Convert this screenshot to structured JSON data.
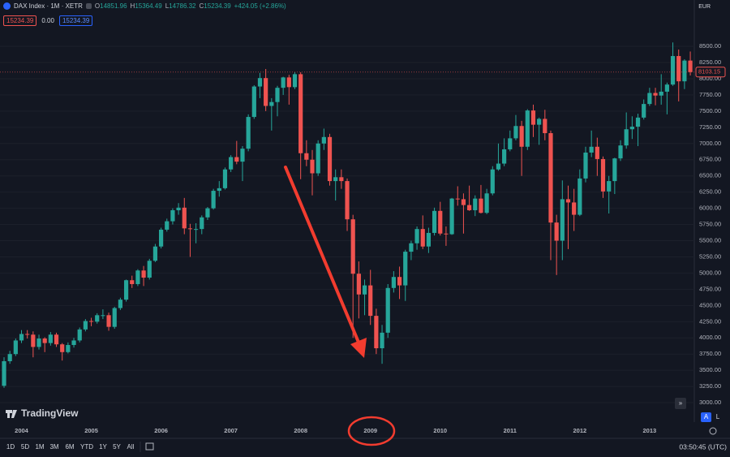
{
  "header": {
    "symbol": "DAX Index · 1M · XETR",
    "o_label": "O",
    "open": "14851.96",
    "h_label": "H",
    "high": "15364.49",
    "l_label": "L",
    "low": "14786.32",
    "c_label": "C",
    "close": "15234.39",
    "change": "+424.05 (+2.86%)",
    "sell": "15234.39",
    "spread": "0.00",
    "buy": "15234.39",
    "currency": "EUR"
  },
  "chart_data": {
    "type": "candlestick",
    "up_color": "#26a69a",
    "down_color": "#ef5350",
    "ylim": [
      2700,
      9215
    ],
    "yticks": [
      {
        "value": 3000,
        "label": "3000.00"
      },
      {
        "value": 3250,
        "label": "3250.00"
      },
      {
        "value": 3500,
        "label": "3500.00"
      },
      {
        "value": 3750,
        "label": "3750.00"
      },
      {
        "value": 4000,
        "label": "4000.00"
      },
      {
        "value": 4250,
        "label": "4250.00"
      },
      {
        "value": 4500,
        "label": "4500.00"
      },
      {
        "value": 4750,
        "label": "4750.00"
      },
      {
        "value": 5000,
        "label": "5000.00"
      },
      {
        "value": 5250,
        "label": "5250.00"
      },
      {
        "value": 5500,
        "label": "5500.00"
      },
      {
        "value": 5750,
        "label": "5750.00"
      },
      {
        "value": 6000,
        "label": "6000.00"
      },
      {
        "value": 6250,
        "label": "6250.00"
      },
      {
        "value": 6500,
        "label": "6500.00"
      },
      {
        "value": 6750,
        "label": "6750.00"
      },
      {
        "value": 7000,
        "label": "7000.00"
      },
      {
        "value": 7250,
        "label": "7250.00"
      },
      {
        "value": 7500,
        "label": "7500.00"
      },
      {
        "value": 7750,
        "label": "7750.00"
      },
      {
        "value": 8000,
        "label": "8000.00"
      },
      {
        "value": 8250,
        "label": "8250.00"
      },
      {
        "value": 8500,
        "label": "8500.00"
      }
    ],
    "xtick_labels": [
      "2004",
      "2005",
      "2006",
      "2007",
      "2008",
      "2009",
      "2010",
      "2011",
      "2012",
      "2013"
    ],
    "ohlc": [
      [
        3260,
        3700,
        3230,
        3640
      ],
      [
        3640,
        3800,
        3600,
        3750
      ],
      [
        3750,
        3990,
        3720,
        3960
      ],
      [
        3960,
        4120,
        3920,
        4060
      ],
      [
        4060,
        4120,
        3990,
        4050
      ],
      [
        4050,
        4100,
        3700,
        3860
      ],
      [
        3860,
        4050,
        3820,
        3990
      ],
      [
        3990,
        4010,
        3780,
        3920
      ],
      [
        3920,
        4090,
        3880,
        4050
      ],
      [
        4050,
        4080,
        3860,
        3900
      ],
      [
        3900,
        3920,
        3650,
        3780
      ],
      [
        3780,
        3930,
        3760,
        3890
      ],
      [
        3890,
        4000,
        3850,
        3960
      ],
      [
        3960,
        4160,
        3930,
        4130
      ],
      [
        4130,
        4290,
        4100,
        4260
      ],
      [
        4260,
        4310,
        4180,
        4250
      ],
      [
        4250,
        4380,
        4220,
        4350
      ],
      [
        4350,
        4440,
        4290,
        4350
      ],
      [
        4350,
        4390,
        4110,
        4170
      ],
      [
        4170,
        4480,
        4140,
        4460
      ],
      [
        4460,
        4620,
        4430,
        4590
      ],
      [
        4590,
        4900,
        4560,
        4890
      ],
      [
        4890,
        4960,
        4770,
        4830
      ],
      [
        4830,
        5060,
        4800,
        5040
      ],
      [
        5040,
        5110,
        4800,
        4930
      ],
      [
        4930,
        5220,
        4900,
        5190
      ],
      [
        5190,
        5450,
        5170,
        5410
      ],
      [
        5410,
        5700,
        5380,
        5670
      ],
      [
        5670,
        5840,
        5640,
        5800
      ],
      [
        5800,
        6000,
        5750,
        5970
      ],
      [
        5970,
        6080,
        5900,
        6010
      ],
      [
        6010,
        6160,
        5600,
        5690
      ],
      [
        5690,
        5760,
        5250,
        5680
      ],
      [
        5680,
        5770,
        5460,
        5680
      ],
      [
        5680,
        5890,
        5600,
        5860
      ],
      [
        5860,
        6020,
        5820,
        6000
      ],
      [
        6000,
        6300,
        5980,
        6270
      ],
      [
        6270,
        6420,
        6180,
        6310
      ],
      [
        6310,
        6630,
        6290,
        6600
      ],
      [
        6600,
        6820,
        6560,
        6790
      ],
      [
        6790,
        7040,
        6680,
        6720
      ],
      [
        6720,
        6960,
        6420,
        6920
      ],
      [
        6920,
        7450,
        6880,
        7410
      ],
      [
        7410,
        7900,
        7380,
        7880
      ],
      [
        7880,
        8090,
        7700,
        8010
      ],
      [
        8010,
        8150,
        7500,
        7580
      ],
      [
        7580,
        7700,
        7200,
        7640
      ],
      [
        7640,
        7890,
        7420,
        7860
      ],
      [
        7860,
        8030,
        7750,
        8020
      ],
      [
        8020,
        8060,
        7600,
        7870
      ],
      [
        7870,
        8100,
        7840,
        8070
      ],
      [
        8070,
        8100,
        6450,
        6850
      ],
      [
        6850,
        7050,
        6650,
        6750
      ],
      [
        6750,
        6900,
        6200,
        6540
      ],
      [
        6540,
        7050,
        6500,
        7000
      ],
      [
        7000,
        7230,
        6900,
        7100
      ],
      [
        7100,
        7150,
        6350,
        6420
      ],
      [
        6420,
        6600,
        6120,
        6480
      ],
      [
        6480,
        6600,
        6300,
        6420
      ],
      [
        6420,
        6460,
        5650,
        5830
      ],
      [
        5830,
        5900,
        4000,
        4990
      ],
      [
        4990,
        5180,
        4300,
        4670
      ],
      [
        4670,
        4900,
        4350,
        4810
      ],
      [
        4810,
        5050,
        4200,
        4340
      ],
      [
        4340,
        4450,
        3750,
        3840
      ],
      [
        3840,
        4200,
        3600,
        4080
      ],
      [
        4080,
        4830,
        4000,
        4770
      ],
      [
        4770,
        5030,
        4700,
        4940
      ],
      [
        4940,
        5100,
        4600,
        4810
      ],
      [
        4810,
        5360,
        4570,
        5330
      ],
      [
        5330,
        5500,
        5200,
        5460
      ],
      [
        5460,
        5720,
        5360,
        5680
      ],
      [
        5680,
        5890,
        5370,
        5410
      ],
      [
        5410,
        5700,
        5310,
        5620
      ],
      [
        5620,
        6010,
        5580,
        5960
      ],
      [
        5960,
        6100,
        5580,
        5610
      ],
      [
        5610,
        5720,
        5420,
        5600
      ],
      [
        5600,
        6160,
        5590,
        6150
      ],
      [
        6150,
        6340,
        6040,
        6140
      ],
      [
        6140,
        6230,
        5610,
        6050
      ],
      [
        6050,
        6350,
        5960,
        5970
      ],
      [
        5970,
        6200,
        5880,
        6150
      ],
      [
        6150,
        6360,
        5920,
        5930
      ],
      [
        5930,
        6300,
        5910,
        6230
      ],
      [
        6230,
        6650,
        6200,
        6600
      ],
      [
        6600,
        7000,
        6580,
        6690
      ],
      [
        6690,
        7080,
        6650,
        6910
      ],
      [
        6910,
        7200,
        6880,
        7080
      ],
      [
        7080,
        7440,
        7050,
        7270
      ],
      [
        7270,
        7350,
        6500,
        6950
      ],
      [
        6950,
        7530,
        6900,
        7510
      ],
      [
        7510,
        7600,
        7100,
        7290
      ],
      [
        7290,
        7400,
        6980,
        7380
      ],
      [
        7380,
        7520,
        7050,
        7160
      ],
      [
        7160,
        7200,
        5200,
        5780
      ],
      [
        5780,
        5900,
        4970,
        5500
      ],
      [
        5500,
        6430,
        5200,
        6140
      ],
      [
        6140,
        6350,
        5370,
        6090
      ],
      [
        6090,
        6300,
        5650,
        5900
      ],
      [
        5900,
        6600,
        5880,
        6460
      ],
      [
        6460,
        6950,
        6400,
        6860
      ],
      [
        6860,
        7200,
        6790,
        6950
      ],
      [
        6950,
        7090,
        6500,
        6760
      ],
      [
        6760,
        6800,
        6160,
        6260
      ],
      [
        6260,
        6500,
        5920,
        6420
      ],
      [
        6420,
        6780,
        6220,
        6770
      ],
      [
        6770,
        7050,
        6730,
        6970
      ],
      [
        6970,
        7480,
        6920,
        7220
      ],
      [
        7220,
        7420,
        7070,
        7260
      ],
      [
        7260,
        7460,
        6960,
        7400
      ],
      [
        7400,
        7680,
        7370,
        7610
      ],
      [
        7610,
        7860,
        7580,
        7780
      ],
      [
        7780,
        7860,
        7590,
        7740
      ],
      [
        7740,
        8070,
        7600,
        7800
      ],
      [
        7800,
        7940,
        7450,
        7910
      ],
      [
        7910,
        8560,
        7890,
        8350
      ],
      [
        8350,
        8450,
        7650,
        7960
      ],
      [
        7960,
        8300,
        7840,
        8280
      ],
      [
        8280,
        8420,
        8050,
        8103.15
      ]
    ]
  },
  "branding": {
    "logo": "TradingView"
  },
  "toolbar": {
    "ranges": [
      "1D",
      "5D",
      "1M",
      "3M",
      "6M",
      "YTD",
      "1Y",
      "5Y",
      "All"
    ],
    "clock": "03:50:45 (UTC)",
    "auto": "A",
    "log": "L"
  }
}
